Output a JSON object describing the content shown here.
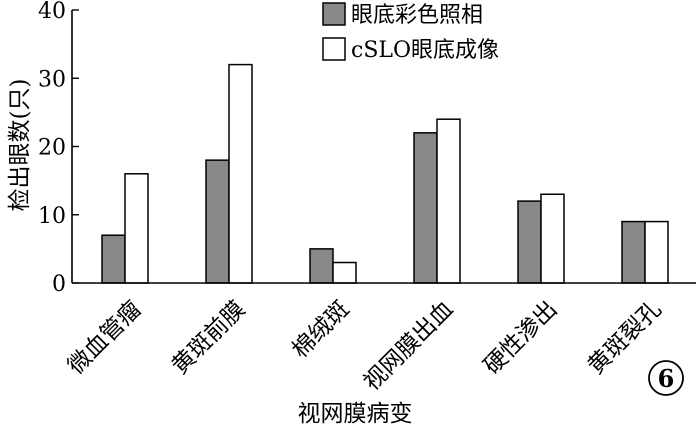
{
  "chart_data": {
    "type": "bar",
    "categories": [
      "微血管瘤",
      "黄斑前膜",
      "棉绒斑",
      "视网膜出血",
      "硬性渗出",
      "黄斑裂孔"
    ],
    "series": [
      {
        "name": "眼底彩色照相",
        "values": [
          7,
          18,
          5,
          22,
          12,
          9
        ],
        "color": "#888888"
      },
      {
        "name": "cSLO眼底成像",
        "values": [
          16,
          32,
          3,
          24,
          13,
          9
        ],
        "color": "#ffffff"
      }
    ],
    "xlabel": "视网膜病变",
    "ylabel": "检出眼数(只)",
    "ylim": [
      0,
      40
    ],
    "yticks": [
      0,
      10,
      20,
      30,
      40
    ],
    "legend_position": "top-right",
    "grid": false,
    "badge": "6"
  }
}
